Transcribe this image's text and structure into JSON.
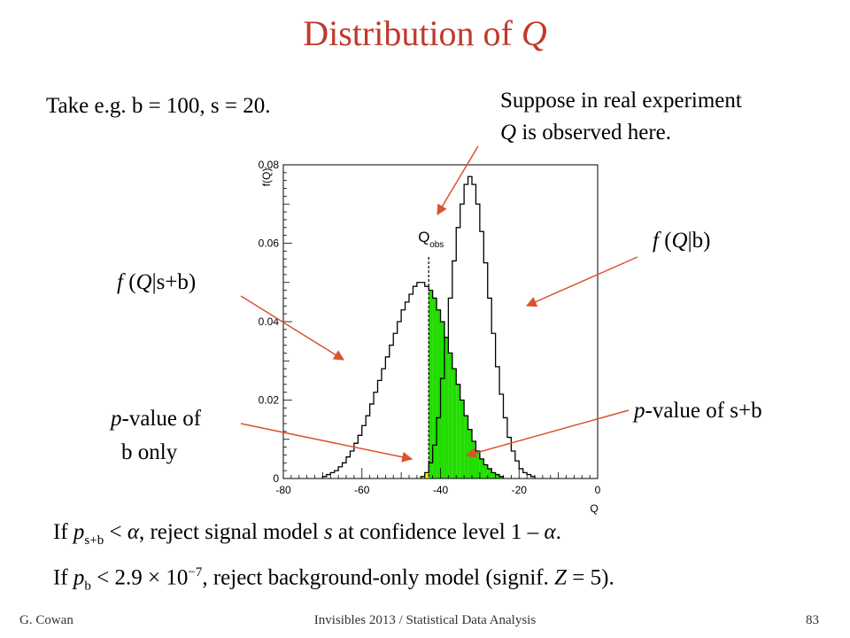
{
  "slide": {
    "title": "Distribution of ",
    "title_var": "Q",
    "take_text": "Take e.g. b = 100, s = 20.",
    "suppose_line1": "Suppose in real experiment",
    "suppose_line2_var": "Q",
    "suppose_line2_rest": " is observed here.",
    "fqb_f": "f",
    "fqb_mid": " (",
    "fqb_q": "Q",
    "fqb_rest": "|b)",
    "fqsb_f": "f",
    "fqsb_mid": " (",
    "fqsb_q": "Q",
    "fqsb_rest": "|s+b)",
    "pv_b_p": "p",
    "pv_b_rest": "-value of",
    "pv_b_line2": "b only",
    "pv_sb_p": "p",
    "pv_sb_rest": "-value of s+b",
    "rule1": {
      "if": "If ",
      "p": "p",
      "sub": "s+b",
      "mid": " < ",
      "alpha": "α",
      "a": ", reject signal model ",
      "s": "s",
      "b": " at confidence level 1 – ",
      "alpha2": "α",
      "end": "."
    },
    "rule2": {
      "if": "If ",
      "p": "p",
      "sub": "b",
      "a": " < 2.9 × 10",
      "sup": "−7",
      "b": ", reject background-only model (signif. ",
      "z": "Z",
      "c": " = 5)."
    },
    "footer_left": "G. Cowan",
    "footer_center": "Invisibles 2013 / Statistical Data Analysis",
    "footer_right": "83"
  },
  "colors": {
    "title": "#c0392b",
    "arrow": "#d9532e",
    "fill_sb": "#22dd00",
    "fill_b": "#ffff00"
  },
  "chart_data": {
    "type": "histogram",
    "xlabel": "Q",
    "ylabel": "f(Q)",
    "xlim": [
      -80,
      0
    ],
    "ylim": [
      0,
      0.08
    ],
    "xticks": [
      "-80",
      "-60",
      "-40",
      "-20",
      "0"
    ],
    "yticks": [
      "0",
      "0.02",
      "0.04",
      "0.06",
      "0.08"
    ],
    "q_obs": -43,
    "q_obs_label": "Q",
    "q_obs_sub": "obs",
    "series": [
      {
        "name": "f(Q|s+b)",
        "x_start": -70,
        "bin_width": 1,
        "values": [
          0.0005,
          0.001,
          0.0015,
          0.002,
          0.003,
          0.004,
          0.0055,
          0.007,
          0.009,
          0.011,
          0.0135,
          0.016,
          0.019,
          0.022,
          0.025,
          0.028,
          0.031,
          0.034,
          0.037,
          0.04,
          0.043,
          0.045,
          0.047,
          0.049,
          0.05,
          0.05,
          0.049,
          0.048,
          0.046,
          0.043,
          0.04,
          0.036,
          0.032,
          0.028,
          0.024,
          0.02,
          0.016,
          0.0125,
          0.0095,
          0.007,
          0.005,
          0.0035,
          0.0025,
          0.0015,
          0.001,
          0.0005
        ]
      },
      {
        "name": "f(Q|b)",
        "x_start": -45,
        "bin_width": 1,
        "values": [
          0.0005,
          0.0015,
          0.004,
          0.0085,
          0.0155,
          0.0255,
          0.036,
          0.046,
          0.0555,
          0.064,
          0.07,
          0.075,
          0.077,
          0.075,
          0.07,
          0.063,
          0.055,
          0.046,
          0.037,
          0.0285,
          0.0215,
          0.0155,
          0.0105,
          0.007,
          0.0045,
          0.0025,
          0.0015,
          0.001,
          0.0005
        ]
      }
    ]
  }
}
